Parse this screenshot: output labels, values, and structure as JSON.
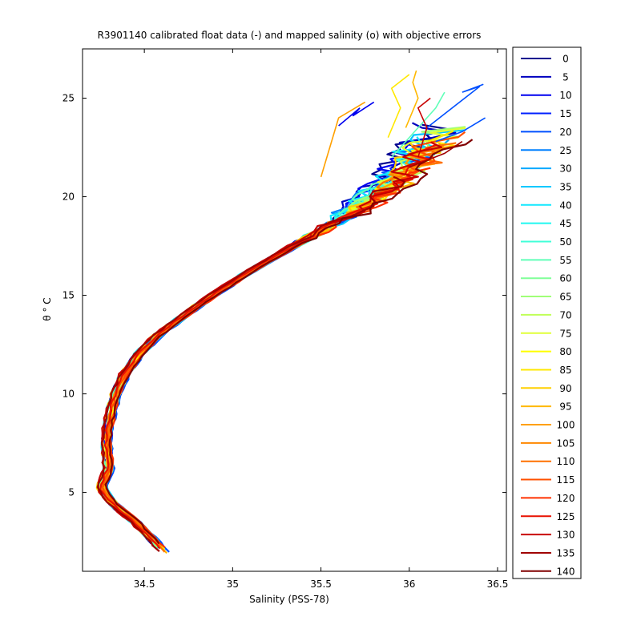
{
  "chart_data": {
    "type": "line",
    "title": "R3901140 calibrated float data (-) and mapped salinity (o) with objective errors",
    "xlabel": "Salinity (PSS-78)",
    "ylabel": "θ ° C",
    "xlim": [
      34.15,
      36.55
    ],
    "ylim": [
      1,
      27.5
    ],
    "xticks": [
      34.5,
      35,
      35.5,
      36,
      36.5
    ],
    "yticks": [
      5,
      10,
      15,
      20,
      25
    ],
    "xtick_labels": [
      "34.5",
      "35",
      "35.5",
      "36",
      "36.5"
    ],
    "ytick_labels": [
      "5",
      "10",
      "15",
      "20",
      "25"
    ],
    "grid": false,
    "legend_position": "outside-right",
    "profile_labels": [
      "0",
      "5",
      "10",
      "15",
      "20",
      "25",
      "30",
      "35",
      "40",
      "45",
      "50",
      "55",
      "60",
      "65",
      "70",
      "75",
      "80",
      "85",
      "90",
      "95",
      "100",
      "105",
      "110",
      "115",
      "120",
      "125",
      "130",
      "135",
      "140"
    ],
    "profile_colors": [
      "#00008f",
      "#0000bf",
      "#0000ef",
      "#0020ff",
      "#0050ff",
      "#0080ff",
      "#00a8ff",
      "#00c8ff",
      "#10e8ff",
      "#20f8f0",
      "#40ffd8",
      "#60ffb8",
      "#80ff98",
      "#a0ff78",
      "#c0ff58",
      "#e0ff38",
      "#ffff00",
      "#ffe800",
      "#ffd000",
      "#ffb800",
      "#ffa000",
      "#ff8800",
      "#ff7000",
      "#ff5000",
      "#ff3000",
      "#e81000",
      "#c80000",
      "#a00000",
      "#800000"
    ],
    "mean_profile": {
      "theta": [
        1.9,
        2.5,
        3.5,
        4.3,
        4.8,
        5.2,
        5.6,
        6.2,
        7.0,
        8.0,
        9.0,
        10.0,
        11.0,
        12.0,
        13.0,
        14.0,
        15.0,
        16.0,
        17.0,
        18.0,
        19.0,
        20.0,
        21.0,
        22.0
      ],
      "salinity": [
        34.62,
        34.56,
        34.45,
        34.34,
        34.29,
        34.26,
        34.27,
        34.3,
        34.29,
        34.29,
        34.31,
        34.34,
        34.39,
        34.47,
        34.58,
        34.73,
        34.89,
        35.06,
        35.25,
        35.45,
        35.63,
        35.8,
        35.94,
        36.05
      ]
    },
    "surface_spikes": [
      {
        "profile": "10",
        "salinity": [
          35.6,
          35.72,
          35.68,
          35.8
        ],
        "theta": [
          23.6,
          24.5,
          24.1,
          24.8
        ]
      },
      {
        "profile": "20",
        "salinity": [
          36.1,
          36.4,
          36.3,
          36.42
        ],
        "theta": [
          23.5,
          25.6,
          25.3,
          25.7
        ]
      },
      {
        "profile": "20",
        "salinity": [
          36.15,
          36.3,
          36.43
        ],
        "theta": [
          22.8,
          23.3,
          24.0
        ]
      },
      {
        "profile": "55",
        "salinity": [
          35.9,
          36.05,
          36.15,
          36.2
        ],
        "theta": [
          22.0,
          23.5,
          24.5,
          25.3
        ]
      },
      {
        "profile": "85",
        "salinity": [
          35.88,
          35.95,
          35.9,
          36.0
        ],
        "theta": [
          23.0,
          24.5,
          25.5,
          26.2
        ]
      },
      {
        "profile": "95",
        "salinity": [
          35.98,
          36.05,
          36.02,
          36.04
        ],
        "theta": [
          23.5,
          25.0,
          25.8,
          26.4
        ]
      },
      {
        "profile": "100",
        "salinity": [
          35.5,
          35.55,
          35.6,
          35.75
        ],
        "theta": [
          21.0,
          22.5,
          24.0,
          24.8
        ]
      },
      {
        "profile": "130",
        "salinity": [
          36.05,
          36.1,
          36.05,
          36.12
        ],
        "theta": [
          22.0,
          23.5,
          24.5,
          25.0
        ]
      },
      {
        "profile": "135",
        "salinity": [
          36.0,
          36.2,
          36.3
        ],
        "theta": [
          21.5,
          22.2,
          22.8
        ]
      }
    ]
  }
}
